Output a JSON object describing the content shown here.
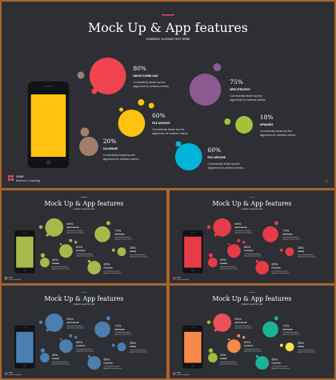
{
  "title": "Mock Up & App features",
  "subtitle": "COMPANY SLOGAN TEXT HERE",
  "body_text": "Conveniently iterate top-line alignments for wireless metrics.",
  "logo": {
    "line1": "YOUR",
    "line2": "Business Consulting"
  },
  "page_number": "23",
  "features": [
    {
      "value": "80%",
      "label": "IMAGE DOWNLOAD"
    },
    {
      "value": "75%",
      "label": "WEB STRATEGY"
    },
    {
      "value": "60%",
      "label": "FILE ARCHIVE"
    },
    {
      "value": "18%",
      "label": "UPWARDS"
    },
    {
      "value": "20%",
      "label": "CALENDAR"
    },
    {
      "value": "60%",
      "label": "FILE ARCHIVE"
    }
  ],
  "themes": {
    "main": {
      "bubbles": [
        "#f0434f",
        "#8c5a8e",
        "#ffc20e",
        "#a3c13a",
        "#a07e6a",
        "#00b5d8"
      ],
      "screen": "#ffc20e",
      "accent": "#e84a5f"
    },
    "t1": {
      "bubbles": [
        "#a8b84a",
        "#a8b84a",
        "#a8b84a",
        "#a8b84a",
        "#a8b84a",
        "#a8b84a"
      ],
      "screen": "#a8b84a",
      "accent": "#a8b84a"
    },
    "t2": {
      "bubbles": [
        "#e63b48",
        "#e63b48",
        "#e63b48",
        "#e63b48",
        "#e63b48",
        "#e63b48"
      ],
      "screen": "#e63b48",
      "accent": "#e63b48"
    },
    "t3": {
      "bubbles": [
        "#4a7fb0",
        "#4a7fb0",
        "#4a7fb0",
        "#4a7fb0",
        "#4a7fb0",
        "#4a7fb0"
      ],
      "screen": "#4a7fb0",
      "accent": "#4a7fb0"
    },
    "t4": {
      "bubbles": [
        "#e8505b",
        "#1ab394",
        "#f7894b",
        "#f5e04c",
        "#9ec23c",
        "#1ab394"
      ],
      "screen": "#f7894b",
      "accent": "#e8505b"
    }
  }
}
